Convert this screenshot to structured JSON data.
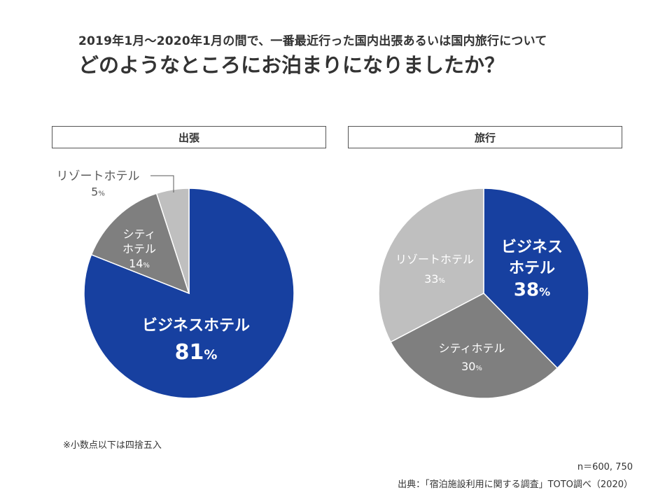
{
  "header": {
    "subtitle": "2019年1月～2020年1月の間で、一番最近行った国内出張あるいは国内旅行について",
    "title": "どのようなところにお泊まりになりましたか？"
  },
  "footer": {
    "note": "※小数点以下は四捨五入",
    "sample": "n＝600, 750",
    "source": "出典：「宿泊施設利用に関する調査」TOTO調べ（2020）"
  },
  "chart_data": [
    {
      "type": "pie",
      "title": "出張",
      "unit": "%",
      "slices": [
        {
          "label_lines": [
            "ビジネスホテル"
          ],
          "value": 81,
          "color": "#1740A0"
        },
        {
          "label_lines": [
            "シティ",
            "ホテル"
          ],
          "value": 14,
          "color": "#7F7F7F"
        },
        {
          "label_lines": [
            "リゾートホテル"
          ],
          "value": 5,
          "color": "#BFBFBF"
        }
      ]
    },
    {
      "type": "pie",
      "title": "旅行",
      "unit": "%",
      "slices": [
        {
          "label_lines": [
            "ビジネス",
            "ホテル"
          ],
          "value": 38,
          "color": "#1740A0"
        },
        {
          "label_lines": [
            "シティホテル"
          ],
          "value": 30,
          "color": "#7F7F7F"
        },
        {
          "label_lines": [
            "リゾートホテル"
          ],
          "value": 33,
          "color": "#BFBFBF"
        }
      ]
    }
  ]
}
